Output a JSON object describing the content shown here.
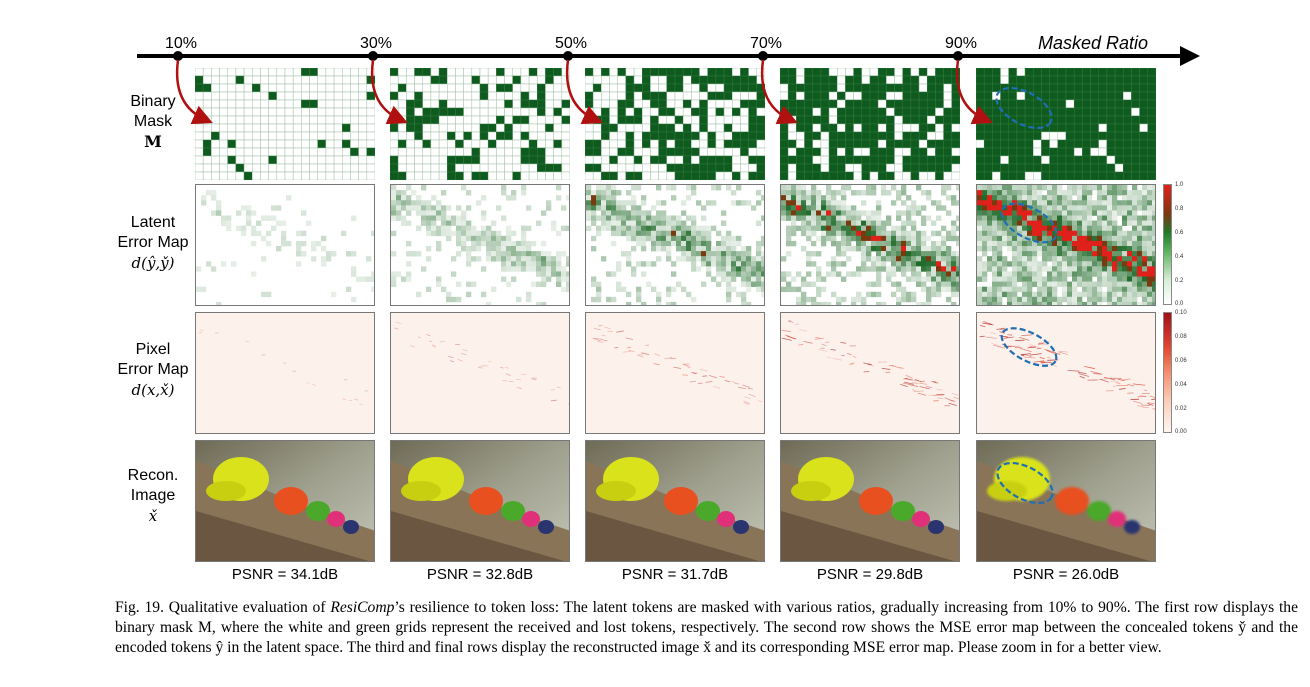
{
  "axis": {
    "title": "Masked Ratio",
    "ticks": [
      "10%",
      "30%",
      "50%",
      "70%",
      "90%"
    ]
  },
  "rows": {
    "mask": {
      "line1": "Binary",
      "line2": "Mask",
      "symbol": "M"
    },
    "latent": {
      "line1": "Latent",
      "line2": "Error Map",
      "symbol": "d(ŷ,y̌)"
    },
    "pixel": {
      "line1": "Pixel",
      "line2": "Error Map",
      "symbol": "d(x,x̌)"
    },
    "recon": {
      "line1": "Recon.",
      "line2": "Image",
      "symbol": "x̌"
    }
  },
  "mask_ratios": [
    0.1,
    0.3,
    0.5,
    0.7,
    0.9
  ],
  "psnr": [
    "PSNR = 34.1dB",
    "PSNR = 32.8dB",
    "PSNR = 31.7dB",
    "PSNR = 29.8dB",
    "PSNR = 26.0dB"
  ],
  "latent_colorbar": {
    "ticks": [
      "1.0",
      "0.8",
      "0.6",
      "0.4",
      "0.2",
      "0.0"
    ]
  },
  "pixel_colorbar": {
    "ticks": [
      "0.10",
      "0.08",
      "0.06",
      "0.04",
      "0.02",
      "0.00"
    ]
  },
  "colors": {
    "mask_green": "#0f5a1e",
    "error_green": "#2e8b3a",
    "error_red": "#e0201a",
    "hat_yellow": "#d9e21a",
    "hat_orange": "#e8501f",
    "ellipse_blue": "#1f6fb5",
    "arrow_red": "#b01010"
  },
  "caption": {
    "prefix": "Fig. 19.  Qualitative evaluation of ",
    "name": "ResiComp",
    "body": "’s resilience to token loss: The latent tokens are masked with various ratios, gradually increasing from 10% to 90%. The first row displays the binary mask M, where the white and green grids represent the received and lost tokens, respectively. The second row shows the MSE error map between the concealed tokens y̌ and the encoded tokens ŷ in the latent space. The third and final rows display the reconstructed image x̌ and its corresponding MSE error map. Please zoom in for a better view."
  }
}
